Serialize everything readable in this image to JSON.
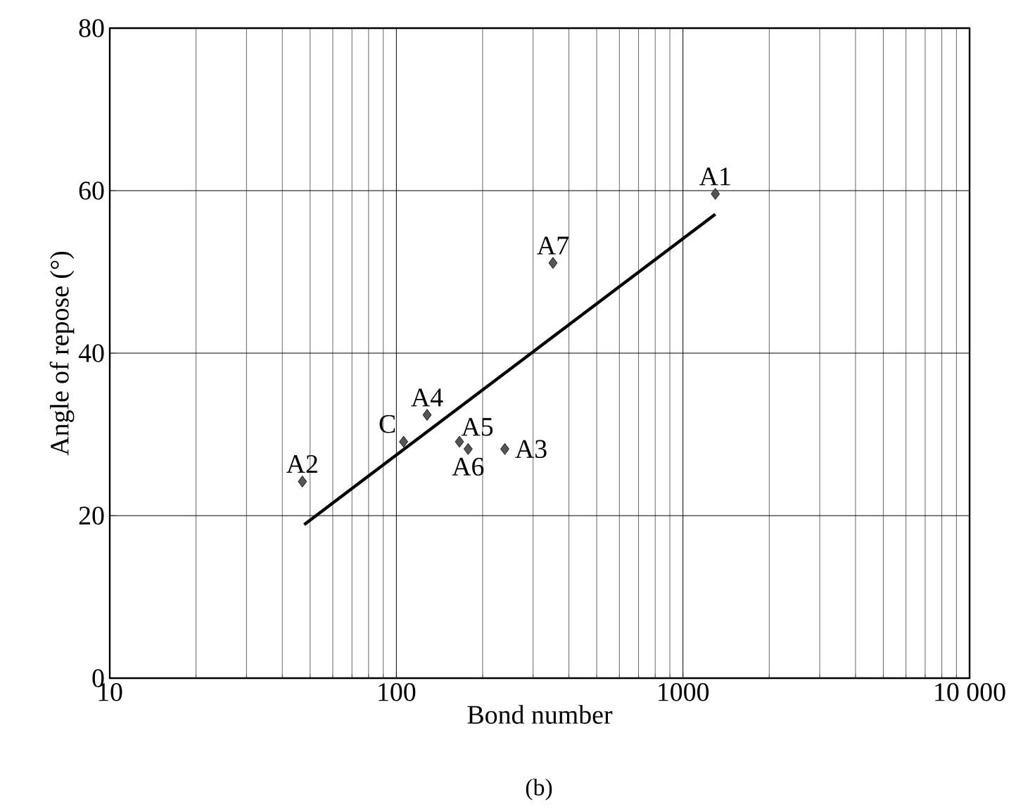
{
  "chart_data": {
    "type": "scatter",
    "xlabel": "Bond number",
    "ylabel": "Angle of repose (°)",
    "log": "x",
    "grid": true,
    "xlim": [
      10,
      10000
    ],
    "xticks": [
      10,
      100,
      1000,
      {
        "value": 10000,
        "label": "10 000"
      }
    ],
    "ylim": [
      0,
      80
    ],
    "yticks": [
      0,
      20,
      40,
      60,
      80
    ],
    "series": [
      {
        "marker": "diamond",
        "color": "#555555",
        "x": [
          1297,
          47,
          239,
          128,
          166,
          178,
          352,
          106
        ],
        "values": [
          59.6,
          24.2,
          28.2,
          32.4,
          29.1,
          28.2,
          51.1,
          29.1
        ]
      },
      {
        "type": "line",
        "color": "#000000",
        "x": [
          47.7,
          1297
        ],
        "values": [
          18.9,
          57.1
        ]
      }
    ],
    "annotations": [
      {
        "text": "A1",
        "x": 1297,
        "y": 59.6
      },
      {
        "text": "A2",
        "x": 47,
        "y": 24.2
      },
      {
        "text": "A3",
        "x": 239,
        "y": 28.2
      },
      {
        "text": "A4",
        "x": 128,
        "y": 32.4
      },
      {
        "text": "A5",
        "x": 166,
        "y": 29.1
      },
      {
        "text": "A6",
        "x": 178,
        "y": 28.2
      },
      {
        "text": "A7",
        "x": 352,
        "y": 51.1
      },
      {
        "text": "C",
        "x": 106,
        "y": 29.1
      },
      "(b)"
    ]
  }
}
